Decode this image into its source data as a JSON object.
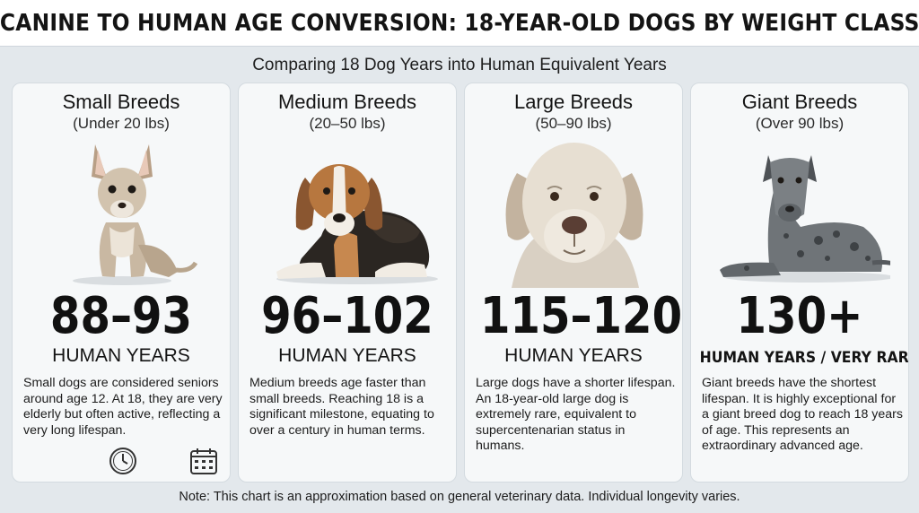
{
  "header": {
    "title": "CANINE TO HUMAN AGE CONVERSION: 18-YEAR-OLD DOGS BY WEIGHT CLASS",
    "subtitle": "Comparing 18 Dog Years into Human Equivalent Years"
  },
  "cards": [
    {
      "title": "Small Breeds",
      "range": "(Under 20 lbs)",
      "age": "88–93",
      "unit": "HUMAN YEARS",
      "description": "Small dogs are considered seniors around age 12. At 18, they are very elderly but often active, reflecting a very long lifespan.",
      "image": "chihuahua-photo"
    },
    {
      "title": "Medium Breeds",
      "range": "(20–50 lbs)",
      "age": "96–102",
      "unit": "HUMAN YEARS",
      "description": "Medium breeds age faster than small breeds. Reaching 18 is a significant milestone, equating to over a century in human terms.",
      "image": "beagle-photo"
    },
    {
      "title": "Large Breeds",
      "range": "(50–90 lbs)",
      "age": "115–120",
      "unit": "HUMAN YEARS",
      "description": "Large dogs have a shorter lifespan. An 18-year-old large dog is extremely rare, equivalent to supercentenarian status in humans.",
      "image": "labrador-photo"
    },
    {
      "title": "Giant Breeds",
      "range": "(Over 90 lbs)",
      "age": "130+",
      "unit": "HUMAN YEARS / VERY RARE",
      "description": "Giant breeds have the shortest lifespan. It is highly exceptional for a giant breed dog to reach 18 years of age. This represents an extraordinary advanced age.",
      "image": "great-dane-photo"
    }
  ],
  "icons": [
    "clock-icon",
    "calendar-icon"
  ],
  "footer": {
    "note": "Note: This chart is an approximation based on general veterinary data. Individual longevity varies."
  }
}
